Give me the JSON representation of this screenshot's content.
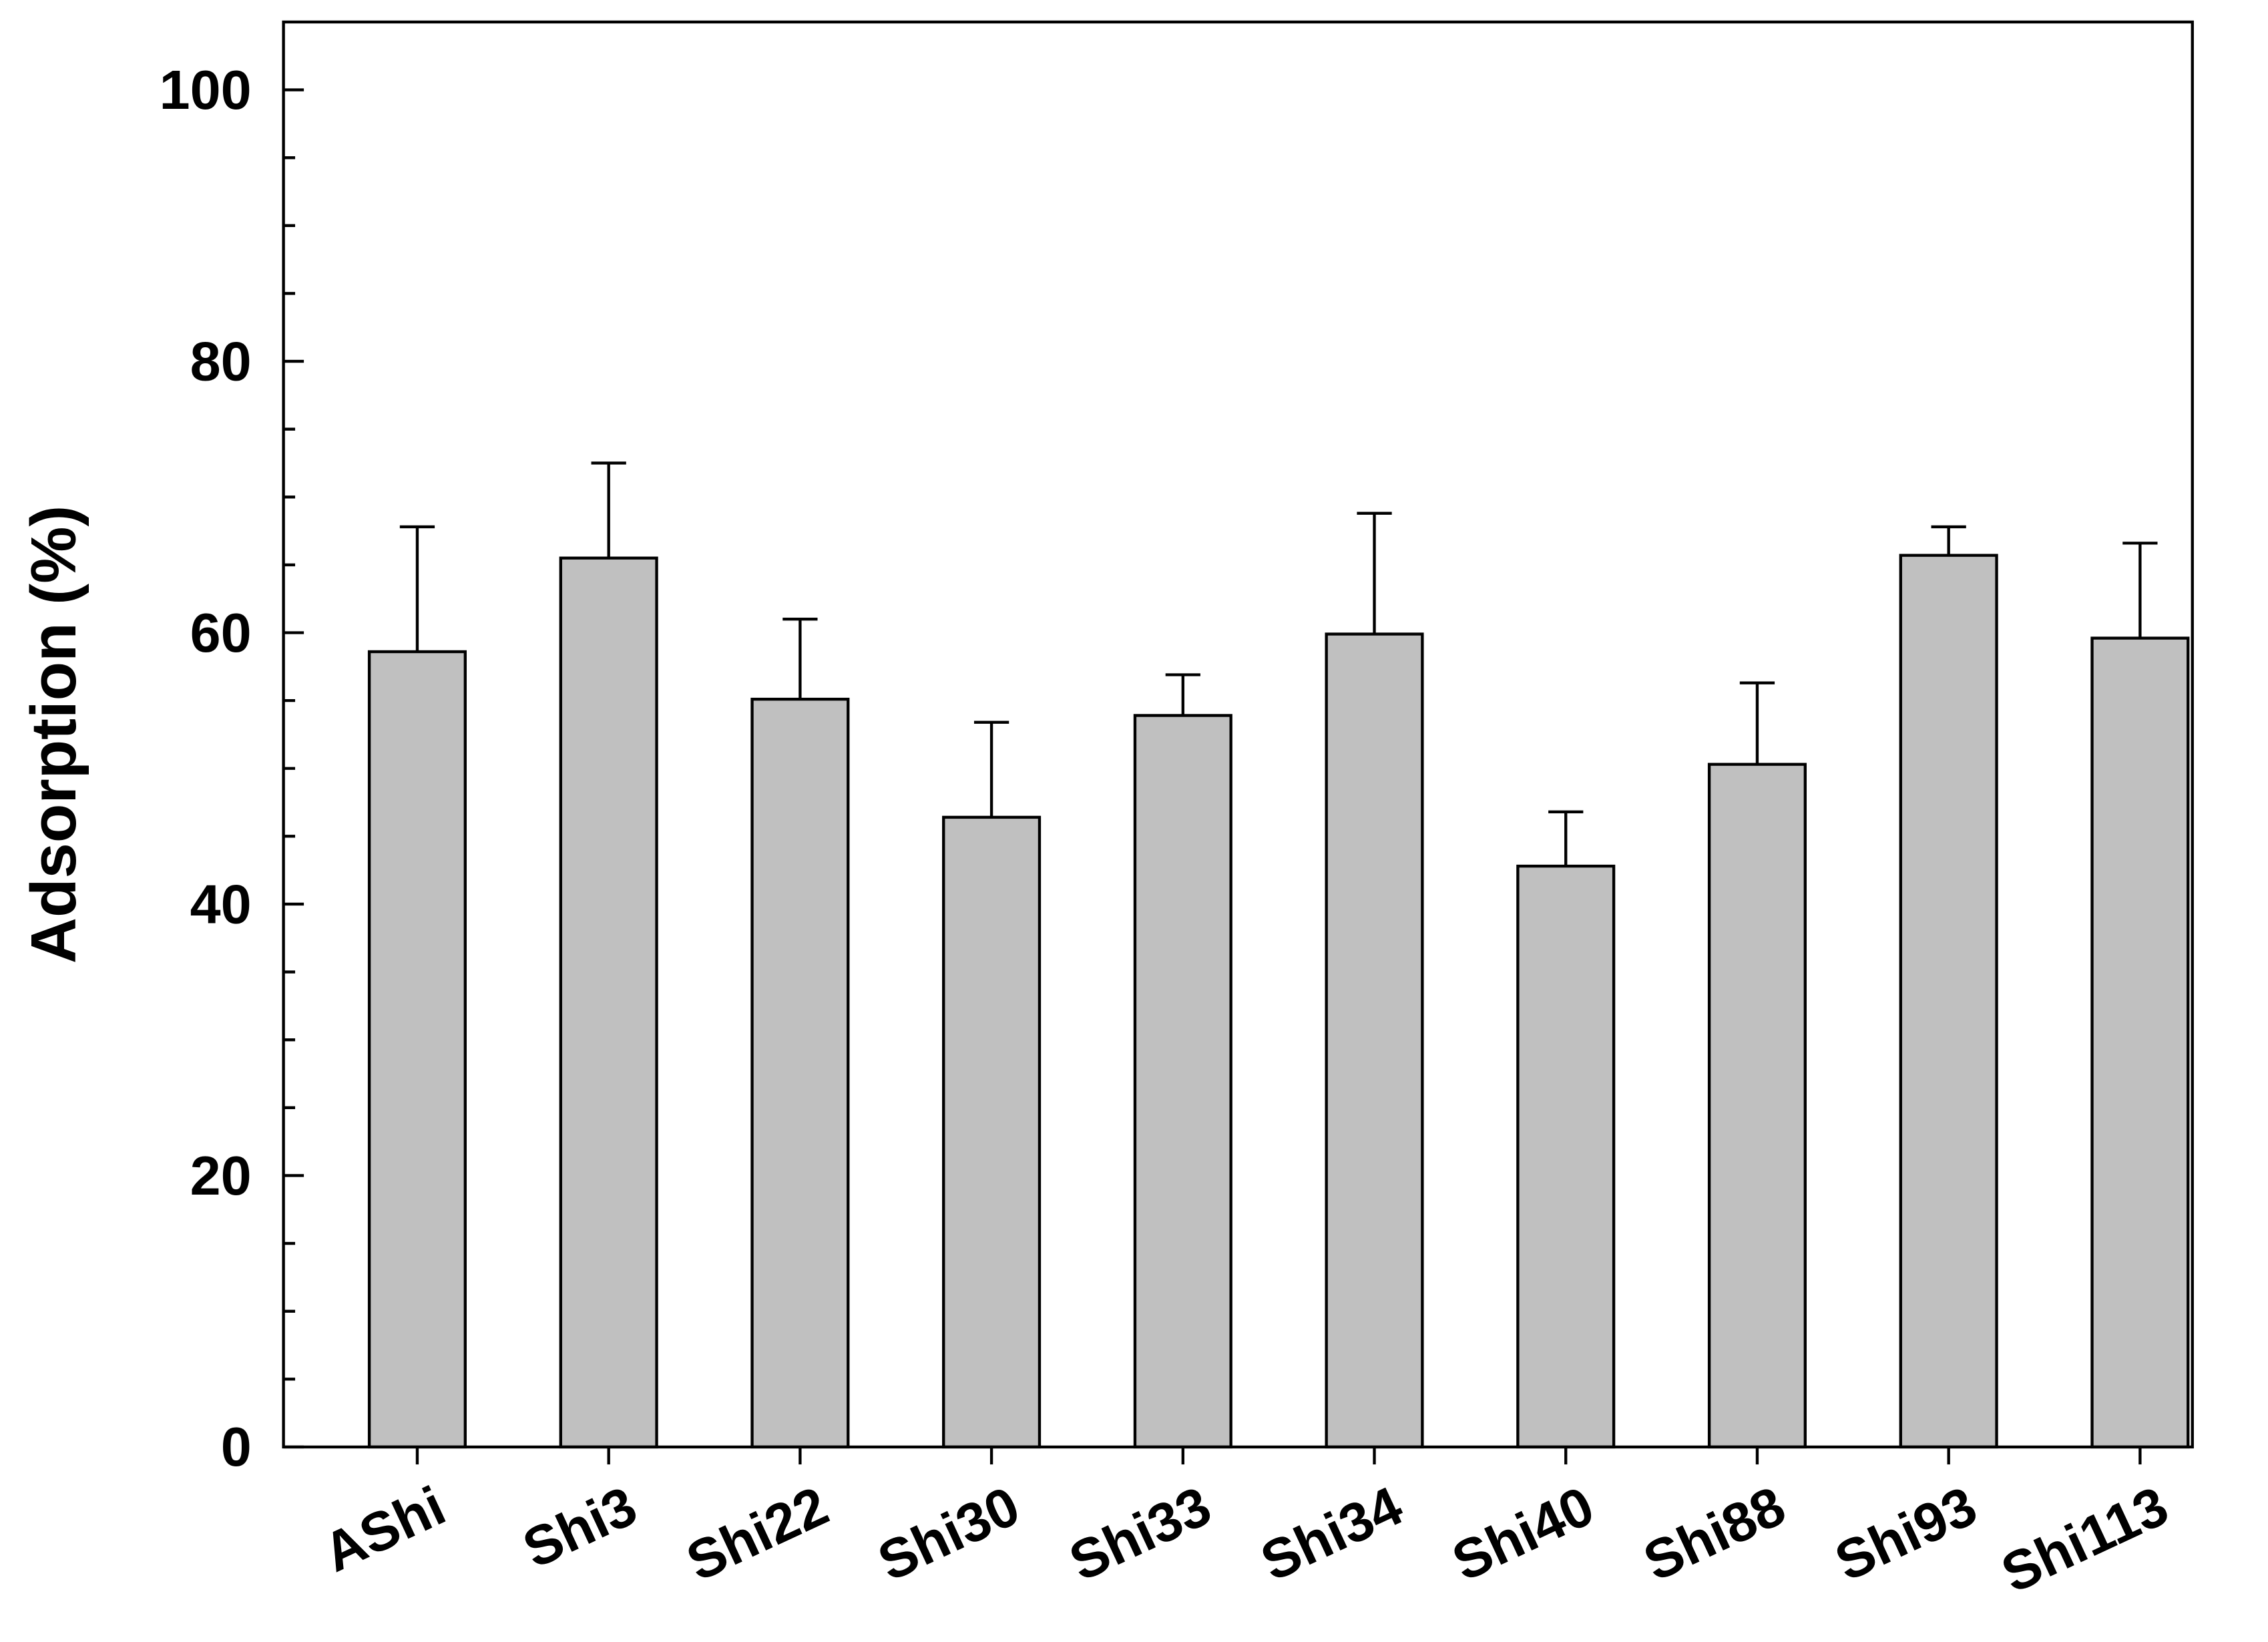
{
  "chart_data": {
    "type": "bar",
    "title": "",
    "xlabel": "",
    "ylabel": "Adsorption (%)",
    "ylim": [
      0,
      105
    ],
    "yticks": [
      0,
      20,
      40,
      60,
      80,
      100
    ],
    "ytick_labels": [
      "0",
      "20",
      "40",
      "60",
      "80",
      "100"
    ],
    "minor_tick_step": 5,
    "grid": false,
    "categories": [
      "AShi",
      "Shi3",
      "Shi22",
      "Shi30",
      "Shi33",
      "Shi34",
      "Shi40",
      "Shi88",
      "Shi93",
      "Shi113"
    ],
    "values": [
      58.6,
      65.5,
      55.1,
      46.4,
      53.9,
      59.9,
      42.8,
      50.3,
      65.7,
      59.6
    ],
    "error_upper": [
      9.2,
      7.0,
      5.9,
      7.0,
      3.0,
      8.9,
      4.0,
      6.0,
      2.1,
      7.0
    ],
    "colors": {
      "bar_fill": "#c0c0c0",
      "bar_stroke": "#000000"
    }
  }
}
